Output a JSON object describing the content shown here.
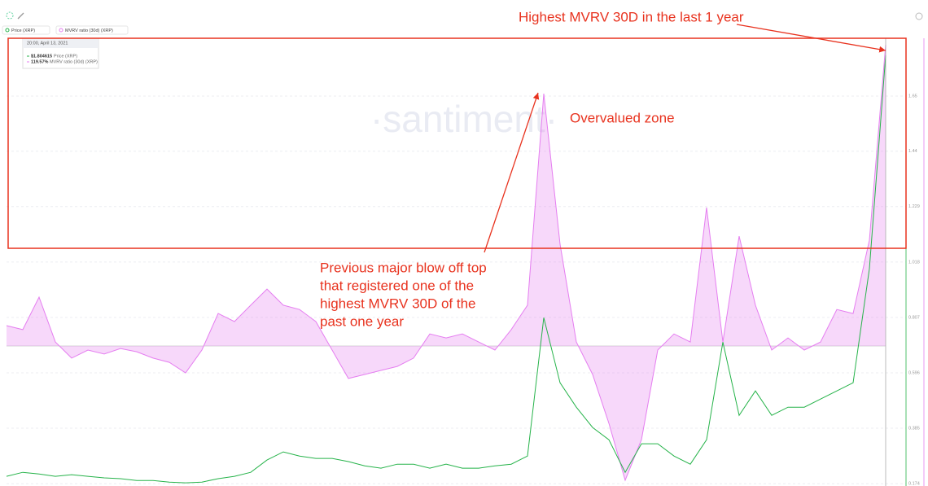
{
  "chart_data": {
    "type": "line",
    "legend": [],
    "watermark": "·santiment·",
    "tooltip": {
      "date": "20:00, April 13, 2021",
      "items": [
        {
          "value": "$1.804615",
          "label": "Price (XRP)"
        },
        {
          "value": "119.57%",
          "label": "MVRV ratio (30d) (XRP)"
        }
      ]
    },
    "annotations": {
      "top": "Highest MVRV 30D in the last 1 year",
      "zone": "Overvalued zone",
      "previous": [
        "Previous major blow off top",
        "that registered one of the",
        "highest MVRV 30D of the",
        "past one year"
      ]
    },
    "categories": [
      null,
      null,
      null,
      null,
      null,
      null,
      null,
      null,
      null,
      null,
      null,
      null,
      null,
      null,
      null,
      null,
      null,
      null,
      null,
      null,
      null,
      null,
      null,
      null,
      null,
      null,
      null,
      null,
      null,
      null,
      null,
      null,
      null,
      null,
      null,
      null,
      null,
      null,
      null,
      null,
      null,
      null,
      null,
      null,
      null,
      null,
      null,
      null,
      null,
      null,
      null,
      null,
      null,
      null,
      null
    ],
    "series": [
      {
        "name": "Price (XRP)",
        "color": "#26b34a",
        "axis": "y",
        "values": [
          0.202,
          0.217,
          0.211,
          0.202,
          0.208,
          0.202,
          0.196,
          0.193,
          0.186,
          0.186,
          0.18,
          0.177,
          0.18,
          0.193,
          0.202,
          0.217,
          0.264,
          0.295,
          0.279,
          0.27,
          0.27,
          0.258,
          0.242,
          0.233,
          0.248,
          0.248,
          0.233,
          0.248,
          0.233,
          0.233,
          0.242,
          0.248,
          0.279,
          0.806,
          0.558,
          0.465,
          0.388,
          0.341,
          0.217,
          0.326,
          0.326,
          0.279,
          0.248,
          0.341,
          0.713,
          0.434,
          0.527,
          0.434,
          0.465,
          0.465,
          0.496,
          0.527,
          0.558,
          0.992,
          1.804615
        ]
      },
      {
        "name": "MVRV ratio (30d) (XRP)",
        "color": "#e57ef0",
        "axis": "y2",
        "area": true,
        "values": [
          8.1,
          6.5,
          19.4,
          1.6,
          -4.8,
          -1.6,
          -3.2,
          -1.0,
          -2.3,
          -4.8,
          -6.5,
          -10.7,
          -1.6,
          12.9,
          9.7,
          16.2,
          22.6,
          16.2,
          14.5,
          9.7,
          -1.6,
          -12.9,
          -11.3,
          -9.7,
          -8.1,
          -4.8,
          4.8,
          3.2,
          4.8,
          1.6,
          -1.6,
          6.5,
          16.2,
          100.2,
          40.4,
          1.6,
          -11.3,
          -30.7,
          -53.3,
          -37.2,
          -1.6,
          4.8,
          1.6,
          55.0,
          1.6,
          43.6,
          16.2,
          -1.6,
          3.2,
          -1.6,
          1.6,
          14.5,
          12.9,
          42.0,
          119.57
        ]
      }
    ],
    "ylim": [
      0.165,
      1.87
    ],
    "yticks": [
      0.174,
      0.385,
      0.596,
      0.807,
      1.018,
      1.229,
      1.44,
      1.65
    ],
    "y2lim": [
      -55.6,
      122.2
    ],
    "grid": true
  }
}
